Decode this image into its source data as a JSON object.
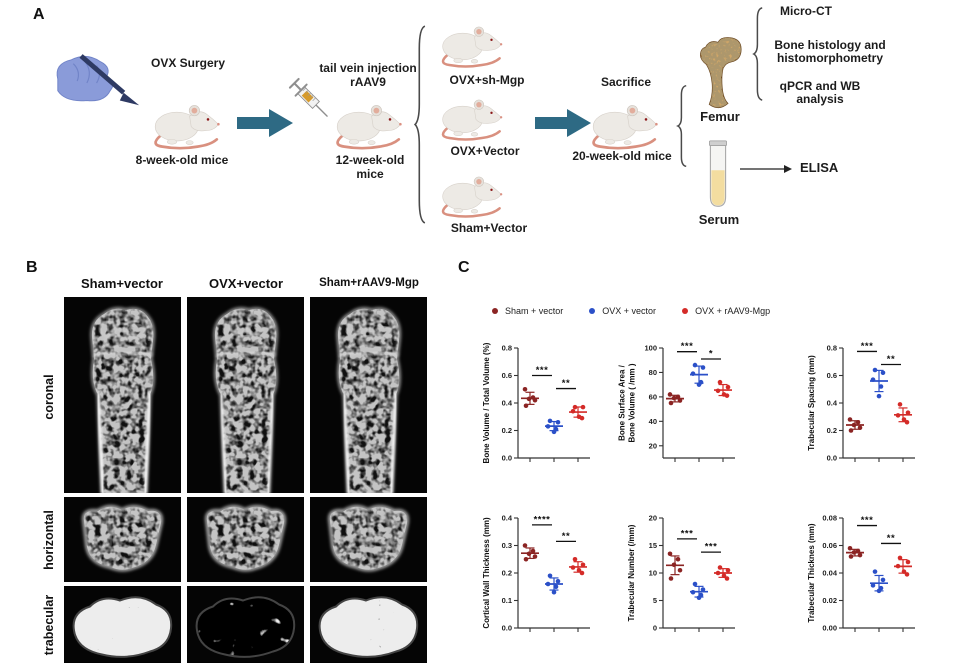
{
  "panels": {
    "a": {
      "label": "A",
      "surgery_title": "OVX Surgery",
      "mice8": "8-week-old mice",
      "injection_line1": "tail vein injection",
      "injection_line2": "rAAV9",
      "mice12_line1": "12-week-old",
      "mice12_line2": "mice",
      "group1": "OVX+sh-Mgp",
      "group2": "OVX+Vector",
      "group3": "Sham+Vector",
      "sacrifice": "Sacrifice",
      "mice20": "20-week-old mice",
      "femur": "Femur",
      "serum": "Serum",
      "analysis1": "Micro-CT",
      "analysis2_line1": "Bone histology and",
      "analysis2_line2": "histomorphometry",
      "analysis3_line1": "qPCR and WB",
      "analysis3_line2": "analysis",
      "elisa": "ELISA",
      "arrow_color": "#2E6A84",
      "icons": [
        "hand-scalpel-icon",
        "mouse-icon",
        "syringe-icon",
        "brace-icon",
        "femur-icon",
        "serum-tube-icon",
        "arrow-icon"
      ]
    },
    "b": {
      "label": "B",
      "columns": [
        "Sham+vector",
        "OVX+vector",
        "Sham+rAAV9-Mgp"
      ],
      "rows": [
        "coronal",
        "horizontal",
        "trabecular"
      ]
    },
    "c": {
      "label": "C",
      "legend": [
        {
          "label": "Sham + vector",
          "color": "#8B2423"
        },
        {
          "label": "OVX + vector",
          "color": "#2B50C8"
        },
        {
          "label": "OVX + rAAV9-Mgp",
          "color": "#D42B28"
        }
      ]
    }
  },
  "chart_data": [
    {
      "type": "scatter",
      "ylabel_lines": [
        "Bone Volume / Total Volume (%)"
      ],
      "ylim": [
        0,
        0.8
      ],
      "yticks": [
        0,
        0.2,
        0.4,
        0.6,
        0.8
      ],
      "ytick_labels": [
        "0.0",
        "0.2",
        "0.4",
        "0.6",
        "0.8"
      ],
      "x_categories": [
        "Sham + vector",
        "OVX + vector",
        "OVX + rAAV9-Mgp"
      ],
      "groups": [
        {
          "name": "Sham + vector",
          "color": "#8B2423",
          "points": [
            0.5,
            0.44,
            0.43,
            0.42,
            0.38
          ],
          "mean": 0.434,
          "sd": 0.044
        },
        {
          "name": "OVX + vector",
          "color": "#2B50C8",
          "points": [
            0.27,
            0.26,
            0.23,
            0.21,
            0.19
          ],
          "mean": 0.232,
          "sd": 0.033
        },
        {
          "name": "OVX + rAAV9-Mgp",
          "color": "#D42B28",
          "points": [
            0.37,
            0.37,
            0.34,
            0.3,
            0.29
          ],
          "mean": 0.334,
          "sd": 0.037
        }
      ],
      "sig": [
        {
          "groups": [
            0,
            1
          ],
          "label": "***",
          "y": 0.6
        },
        {
          "groups": [
            1,
            2
          ],
          "label": "**",
          "y": 0.505
        }
      ]
    },
    {
      "type": "scatter",
      "ylabel_lines": [
        "Bone Surface Area /",
        "Bone Volume ( /mm )"
      ],
      "ylim": [
        10,
        100
      ],
      "yticks": [
        20,
        40,
        60,
        80,
        100
      ],
      "ytick_labels": [
        "20",
        "40",
        "60",
        "80",
        "100"
      ],
      "x_categories": [
        "Sham + vector",
        "OVX + vector",
        "OVX + rAAV9-Mgp"
      ],
      "groups": [
        {
          "name": "Sham + vector",
          "color": "#8B2423",
          "points": [
            62,
            60,
            59,
            57,
            55
          ],
          "mean": 58.6,
          "sd": 2.7
        },
        {
          "name": "OVX + vector",
          "color": "#2B50C8",
          "points": [
            86,
            84,
            79,
            72,
            70
          ],
          "mean": 78.2,
          "sd": 7.0
        },
        {
          "name": "OVX + rAAV9-Mgp",
          "color": "#D42B28",
          "points": [
            72,
            68,
            65,
            62,
            61
          ],
          "mean": 65.6,
          "sd": 4.5
        }
      ],
      "sig": [
        {
          "groups": [
            0,
            1
          ],
          "label": "***",
          "y": 97
        },
        {
          "groups": [
            1,
            2
          ],
          "label": "*",
          "y": 91
        }
      ]
    },
    {
      "type": "scatter",
      "ylabel_lines": [
        "Trabecular Spacing (mm)"
      ],
      "ylim": [
        0,
        0.8
      ],
      "yticks": [
        0,
        0.2,
        0.4,
        0.6,
        0.8
      ],
      "ytick_labels": [
        "0.0",
        "0.2",
        "0.4",
        "0.6",
        "0.8"
      ],
      "x_categories": [
        "Sham + vector",
        "OVX + vector",
        "OVX + rAAV9-Mgp"
      ],
      "groups": [
        {
          "name": "Sham + vector",
          "color": "#8B2423",
          "points": [
            0.28,
            0.26,
            0.24,
            0.22,
            0.2
          ],
          "mean": 0.24,
          "sd": 0.031
        },
        {
          "name": "OVX + vector",
          "color": "#2B50C8",
          "points": [
            0.64,
            0.62,
            0.57,
            0.52,
            0.45
          ],
          "mean": 0.56,
          "sd": 0.077
        },
        {
          "name": "OVX + rAAV9-Mgp",
          "color": "#D42B28",
          "points": [
            0.39,
            0.33,
            0.31,
            0.28,
            0.26
          ],
          "mean": 0.314,
          "sd": 0.05
        }
      ],
      "sig": [
        {
          "groups": [
            0,
            1
          ],
          "label": "***",
          "y": 0.775
        },
        {
          "groups": [
            1,
            2
          ],
          "label": "**",
          "y": 0.68
        }
      ]
    },
    {
      "type": "scatter",
      "ylabel_lines": [
        "Cortical Wall Thickness (mm)"
      ],
      "ylim": [
        0,
        0.4
      ],
      "yticks": [
        0,
        0.1,
        0.2,
        0.3,
        0.4
      ],
      "ytick_labels": [
        "0.0",
        "0.1",
        "0.2",
        "0.3",
        "0.4"
      ],
      "x_categories": [
        "Sham + vector",
        "OVX + vector",
        "OVX + rAAV9-Mgp"
      ],
      "groups": [
        {
          "name": "Sham + vector",
          "color": "#8B2423",
          "points": [
            0.3,
            0.28,
            0.27,
            0.26,
            0.25
          ],
          "mean": 0.272,
          "sd": 0.019
        },
        {
          "name": "OVX + vector",
          "color": "#2B50C8",
          "points": [
            0.19,
            0.17,
            0.16,
            0.15,
            0.13
          ],
          "mean": 0.16,
          "sd": 0.022
        },
        {
          "name": "OVX + rAAV9-Mgp",
          "color": "#D42B28",
          "points": [
            0.25,
            0.23,
            0.22,
            0.21,
            0.2
          ],
          "mean": 0.222,
          "sd": 0.019
        }
      ],
      "sig": [
        {
          "groups": [
            0,
            1
          ],
          "label": "****",
          "y": 0.375
        },
        {
          "groups": [
            1,
            2
          ],
          "label": "**",
          "y": 0.315
        }
      ]
    },
    {
      "type": "scatter",
      "ylabel_lines": [
        "Trabecular Number (/mm)"
      ],
      "ylim": [
        0,
        20
      ],
      "yticks": [
        0,
        5,
        10,
        15,
        20
      ],
      "ytick_labels": [
        "0",
        "5",
        "10",
        "15",
        "20"
      ],
      "x_categories": [
        "Sham + vector",
        "OVX + vector",
        "OVX + rAAV9-Mgp"
      ],
      "groups": [
        {
          "name": "Sham + vector",
          "color": "#8B2423",
          "points": [
            13.5,
            12.5,
            11.5,
            10.5,
            9.0
          ],
          "mean": 11.4,
          "sd": 1.7
        },
        {
          "name": "OVX + vector",
          "color": "#2B50C8",
          "points": [
            8.0,
            7.0,
            6.5,
            6.0,
            5.5
          ],
          "mean": 6.6,
          "sd": 0.97
        },
        {
          "name": "OVX + rAAV9-Mgp",
          "color": "#D42B28",
          "points": [
            11.0,
            10.5,
            10.0,
            9.5,
            9.0
          ],
          "mean": 10.0,
          "sd": 0.79
        }
      ],
      "sig": [
        {
          "groups": [
            0,
            1
          ],
          "label": "***",
          "y": 16.2
        },
        {
          "groups": [
            1,
            2
          ],
          "label": "***",
          "y": 13.8
        }
      ]
    },
    {
      "type": "scatter",
      "ylabel_lines": [
        "Trabecular Thicknes (mm)"
      ],
      "ylim": [
        0,
        0.08
      ],
      "yticks": [
        0,
        0.02,
        0.04,
        0.06,
        0.08
      ],
      "ytick_labels": [
        "0.00",
        "0.02",
        "0.04",
        "0.06",
        "0.08"
      ],
      "x_categories": [
        "Sham + vector",
        "OVX + vector",
        "OVX + rAAV9-Mgp"
      ],
      "groups": [
        {
          "name": "Sham + vector",
          "color": "#8B2423",
          "points": [
            0.058,
            0.056,
            0.055,
            0.053,
            0.052
          ],
          "mean": 0.0548,
          "sd": 0.0024
        },
        {
          "name": "OVX + vector",
          "color": "#2B50C8",
          "points": [
            0.041,
            0.035,
            0.031,
            0.029,
            0.027
          ],
          "mean": 0.0326,
          "sd": 0.0056
        },
        {
          "name": "OVX + rAAV9-Mgp",
          "color": "#D42B28",
          "points": [
            0.051,
            0.048,
            0.045,
            0.041,
            0.039
          ],
          "mean": 0.0448,
          "sd": 0.0049
        }
      ],
      "sig": [
        {
          "groups": [
            0,
            1
          ],
          "label": "***",
          "y": 0.0745
        },
        {
          "groups": [
            1,
            2
          ],
          "label": "**",
          "y": 0.0615
        }
      ]
    }
  ]
}
